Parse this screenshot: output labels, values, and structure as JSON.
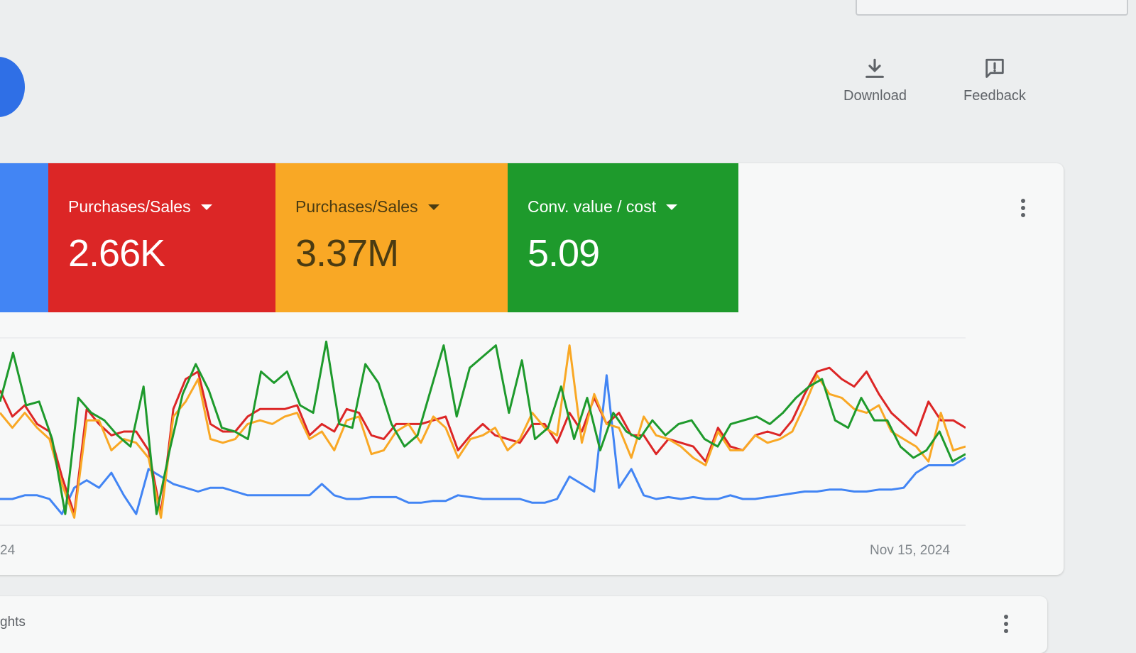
{
  "toolbar": {
    "download_label": "Download",
    "feedback_label": "Feedback"
  },
  "scorecards": [
    {
      "label": "Purchases/Sales",
      "value": "2.66K",
      "color": "#dc2626",
      "text_color": "#ffffff"
    },
    {
      "label": "Purchases/Sales",
      "value": "3.37M",
      "color": "#f9a825",
      "text_color": "#4a3b12"
    },
    {
      "label": "Conv. value / cost",
      "value": "5.09",
      "color": "#1e9a2c",
      "text_color": "#ffffff"
    }
  ],
  "scorecard_first_color": "#4285f4",
  "chart": {
    "x_start_label": "24",
    "x_end_label": "Nov 15, 2024"
  },
  "chart_data": {
    "type": "line",
    "x_labels": [
      "24",
      "Nov 15, 2024"
    ],
    "grid": true,
    "series": [
      {
        "color": "#4285f4",
        "values": [
          14,
          14,
          16,
          16,
          14,
          6,
          20,
          24,
          20,
          28,
          16,
          6,
          30,
          26,
          22,
          20,
          18,
          20,
          20,
          18,
          16,
          16,
          16,
          16,
          16,
          16,
          22,
          16,
          14,
          14,
          15,
          15,
          15,
          12,
          12,
          13,
          13,
          16,
          15,
          14,
          14,
          14,
          14,
          12,
          12,
          14,
          26,
          22,
          18,
          80,
          20,
          30,
          16,
          14,
          15,
          14,
          15,
          14,
          14,
          16,
          14,
          14,
          15,
          16,
          17,
          18,
          18,
          19,
          19,
          18,
          18,
          19,
          19,
          20,
          28,
          32,
          32,
          32,
          36
        ]
      },
      {
        "color": "#dc2626",
        "values": [
          72,
          58,
          64,
          54,
          50,
          26,
          6,
          62,
          54,
          48,
          50,
          50,
          40,
          6,
          62,
          78,
          82,
          54,
          50,
          50,
          58,
          62,
          62,
          62,
          64,
          48,
          54,
          50,
          62,
          60,
          48,
          46,
          54,
          54,
          54,
          56,
          58,
          40,
          48,
          54,
          48,
          46,
          44,
          54,
          54,
          44,
          60,
          50,
          68,
          54,
          60,
          48,
          48,
          38,
          46,
          44,
          42,
          34,
          52,
          42,
          40,
          48,
          50,
          48,
          56,
          70,
          82,
          84,
          78,
          74,
          82,
          70,
          60,
          54,
          48,
          66,
          56,
          56,
          52
        ]
      },
      {
        "color": "#f9a825",
        "values": [
          60,
          52,
          60,
          52,
          46,
          22,
          4,
          56,
          56,
          40,
          46,
          44,
          36,
          4,
          58,
          66,
          78,
          46,
          44,
          46,
          54,
          56,
          54,
          58,
          60,
          46,
          50,
          40,
          56,
          58,
          38,
          40,
          50,
          54,
          44,
          58,
          52,
          36,
          46,
          48,
          52,
          40,
          46,
          60,
          52,
          48,
          96,
          44,
          70,
          54,
          52,
          36,
          58,
          48,
          46,
          42,
          36,
          32,
          50,
          40,
          40,
          48,
          44,
          46,
          50,
          64,
          80,
          70,
          68,
          62,
          60,
          64,
          50,
          46,
          42,
          34,
          60,
          40,
          42
        ]
      },
      {
        "color": "#1e9a2c",
        "values": [
          66,
          92,
          64,
          66,
          46,
          6,
          68,
          60,
          56,
          48,
          42,
          74,
          6,
          40,
          70,
          86,
          72,
          52,
          50,
          46,
          82,
          76,
          82,
          64,
          60,
          98,
          54,
          52,
          86,
          76,
          54,
          42,
          48,
          72,
          96,
          58,
          84,
          90,
          96,
          60,
          88,
          46,
          52,
          74,
          46,
          68,
          40,
          60,
          50,
          46,
          56,
          48,
          54,
          56,
          46,
          42,
          54,
          56,
          58,
          54,
          60,
          68,
          74,
          78,
          56,
          52,
          68,
          56,
          56,
          42,
          36,
          40,
          50,
          34,
          38
        ]
      }
    ]
  },
  "insights": {
    "title": "ghts"
  }
}
